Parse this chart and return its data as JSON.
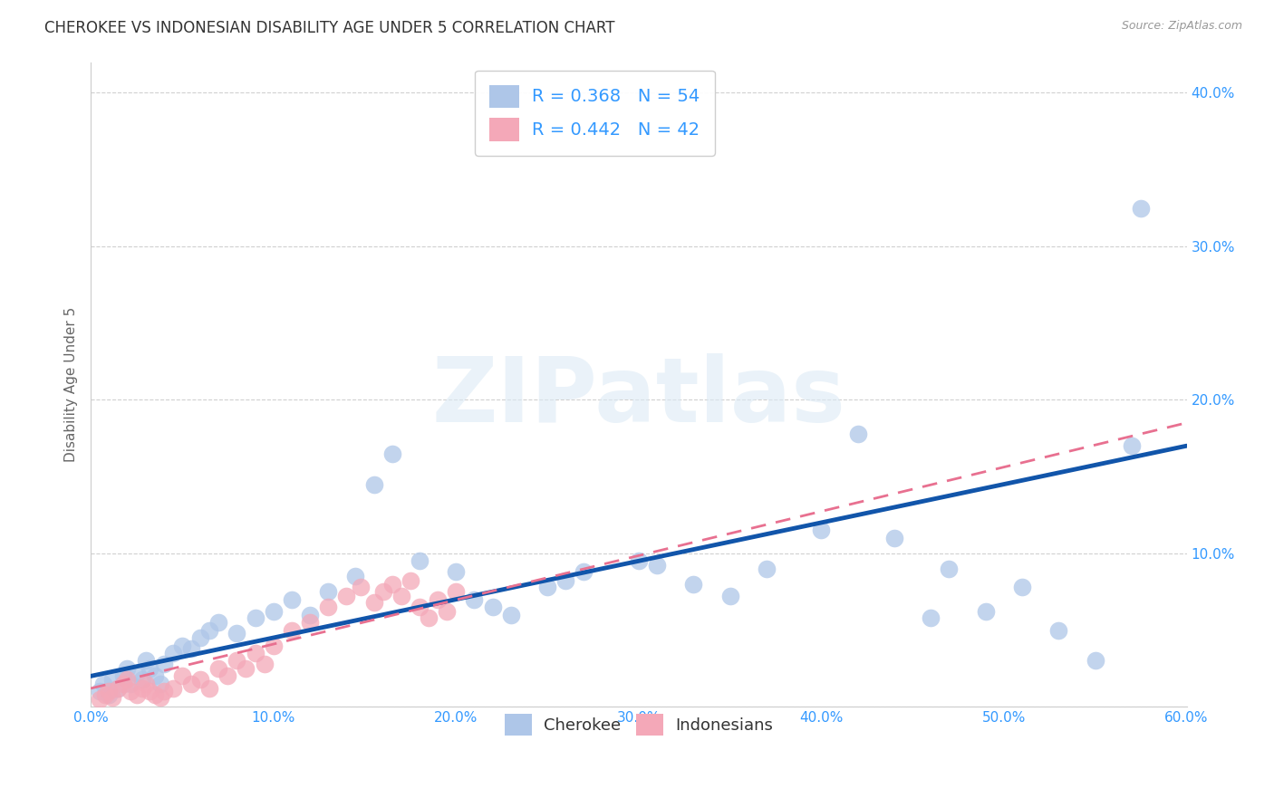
{
  "title": "CHEROKEE VS INDONESIAN DISABILITY AGE UNDER 5 CORRELATION CHART",
  "source": "Source: ZipAtlas.com",
  "ylabel": "Disability Age Under 5",
  "xlim": [
    0.0,
    0.6
  ],
  "ylim": [
    0.0,
    0.42
  ],
  "xticks": [
    0.0,
    0.1,
    0.2,
    0.3,
    0.4,
    0.5,
    0.6
  ],
  "yticks": [
    0.0,
    0.1,
    0.2,
    0.3,
    0.4
  ],
  "xtick_labels": [
    "0.0%",
    "10.0%",
    "20.0%",
    "30.0%",
    "40.0%",
    "50.0%",
    "60.0%"
  ],
  "ytick_labels": [
    "",
    "10.0%",
    "20.0%",
    "30.0%",
    "40.0%"
  ],
  "cherokee_R": 0.368,
  "cherokee_N": 54,
  "indonesian_R": 0.442,
  "indonesian_N": 42,
  "cherokee_color": "#aec6e8",
  "cherokee_line_color": "#1155aa",
  "indonesian_color": "#f4a8b8",
  "indonesian_line_color": "#e87090",
  "cherokee_x": [
    0.005,
    0.007,
    0.01,
    0.012,
    0.015,
    0.018,
    0.02,
    0.022,
    0.025,
    0.028,
    0.03,
    0.032,
    0.035,
    0.038,
    0.04,
    0.045,
    0.05,
    0.055,
    0.06,
    0.065,
    0.07,
    0.08,
    0.09,
    0.1,
    0.11,
    0.12,
    0.13,
    0.145,
    0.155,
    0.165,
    0.18,
    0.2,
    0.21,
    0.22,
    0.23,
    0.25,
    0.26,
    0.27,
    0.3,
    0.31,
    0.33,
    0.35,
    0.37,
    0.4,
    0.42,
    0.44,
    0.46,
    0.47,
    0.49,
    0.51,
    0.53,
    0.55,
    0.57,
    0.575
  ],
  "cherokee_y": [
    0.01,
    0.015,
    0.008,
    0.018,
    0.012,
    0.02,
    0.025,
    0.015,
    0.022,
    0.018,
    0.03,
    0.025,
    0.02,
    0.015,
    0.028,
    0.035,
    0.04,
    0.038,
    0.045,
    0.05,
    0.055,
    0.048,
    0.058,
    0.062,
    0.07,
    0.06,
    0.075,
    0.085,
    0.145,
    0.165,
    0.095,
    0.088,
    0.07,
    0.065,
    0.06,
    0.078,
    0.082,
    0.088,
    0.095,
    0.092,
    0.08,
    0.072,
    0.09,
    0.115,
    0.178,
    0.11,
    0.058,
    0.09,
    0.062,
    0.078,
    0.05,
    0.03,
    0.17,
    0.325
  ],
  "indonesian_x": [
    0.005,
    0.008,
    0.01,
    0.012,
    0.015,
    0.018,
    0.02,
    0.022,
    0.025,
    0.028,
    0.03,
    0.032,
    0.035,
    0.038,
    0.04,
    0.045,
    0.05,
    0.055,
    0.06,
    0.065,
    0.07,
    0.075,
    0.08,
    0.085,
    0.09,
    0.095,
    0.1,
    0.11,
    0.12,
    0.13,
    0.14,
    0.148,
    0.155,
    0.16,
    0.165,
    0.17,
    0.175,
    0.18,
    0.185,
    0.19,
    0.195,
    0.2
  ],
  "indonesian_y": [
    0.005,
    0.008,
    0.01,
    0.006,
    0.012,
    0.015,
    0.018,
    0.01,
    0.008,
    0.012,
    0.015,
    0.01,
    0.008,
    0.006,
    0.01,
    0.012,
    0.02,
    0.015,
    0.018,
    0.012,
    0.025,
    0.02,
    0.03,
    0.025,
    0.035,
    0.028,
    0.04,
    0.05,
    0.055,
    0.065,
    0.072,
    0.078,
    0.068,
    0.075,
    0.08,
    0.072,
    0.082,
    0.065,
    0.058,
    0.07,
    0.062,
    0.075
  ],
  "cherokee_line_x": [
    0.0,
    0.6
  ],
  "cherokee_line_y": [
    0.02,
    0.17
  ],
  "indonesian_line_x": [
    0.0,
    0.6
  ],
  "indonesian_line_y": [
    0.012,
    0.185
  ],
  "background_color": "#ffffff",
  "grid_color": "#d0d0d0",
  "title_fontsize": 12,
  "label_fontsize": 11,
  "tick_fontsize": 11,
  "watermark": "ZIPatlas"
}
